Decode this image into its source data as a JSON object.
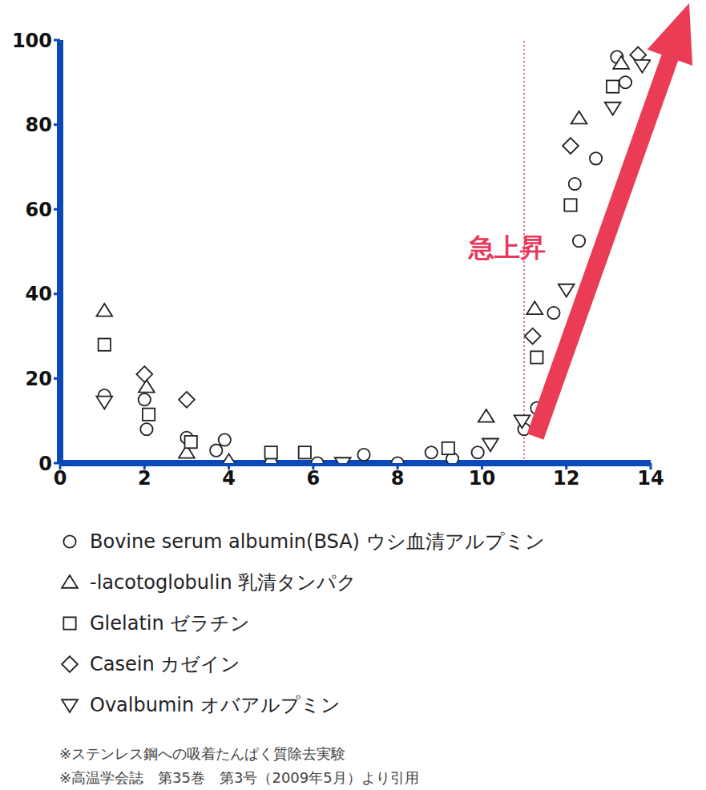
{
  "chart_data": {
    "type": "scatter",
    "xlim": [
      0,
      14
    ],
    "xticks": [
      0,
      2,
      4,
      6,
      8,
      10,
      12,
      14
    ],
    "ylim": [
      0,
      100
    ],
    "yticks": [
      0,
      20,
      40,
      60,
      80,
      100
    ],
    "series": [
      {
        "name": "Bovine serum albumin(BSA) ウシ血清アルプミン",
        "color": "#222222",
        "marker": "circle",
        "x": [
          1.05,
          2.0,
          2.05,
          3.0,
          3.9,
          3.7,
          5.0,
          6.1,
          7.2,
          8.0,
          8.8,
          9.3,
          9.9,
          11.0,
          11.3,
          11.7,
          12.3,
          12.2,
          12.7,
          13.2,
          13.4
        ],
        "values": [
          16,
          15,
          8,
          6,
          5.5,
          3,
          0,
          0,
          2,
          0,
          2.5,
          1,
          2.5,
          8,
          13,
          35.5,
          52.5,
          66,
          72,
          96,
          90
        ]
      },
      {
        "name": "-lacotoglobulin 乳清タンパク",
        "color": "#222222",
        "marker": "triangle",
        "x": [
          1.05,
          2.05,
          3.0,
          4.0,
          10.1,
          11.25,
          12.3,
          13.3
        ],
        "values": [
          36,
          18,
          2.5,
          0.5,
          11,
          36.5,
          81.5,
          94.5
        ]
      },
      {
        "name": "Glelatin ゼラチン",
        "color": "#222222",
        "marker": "square",
        "x": [
          1.05,
          2.1,
          3.1,
          5.0,
          5.8,
          9.2,
          11.3,
          12.1,
          13.1
        ],
        "values": [
          28,
          11.5,
          5,
          2.5,
          2.5,
          3.5,
          25,
          61,
          89
        ]
      },
      {
        "name": "Casein カゼイン",
        "color": "#222222",
        "marker": "diamond",
        "x": [
          2.0,
          3.0,
          11.2,
          12.1,
          13.7
        ],
        "values": [
          21,
          15,
          30,
          75,
          96.5
        ]
      },
      {
        "name": "Ovalbumin オバアルプミン",
        "color": "#222222",
        "marker": "triangle-down",
        "x": [
          1.05,
          6.7,
          10.2,
          10.95,
          12.0,
          13.1,
          13.8
        ],
        "values": [
          14.5,
          0,
          4.5,
          10,
          41,
          84,
          94
        ]
      }
    ],
    "annotations": [
      {
        "text": "急上昇",
        "x": 10.6,
        "y": 51,
        "color": "#e8385a"
      }
    ],
    "reference_lines": [
      {
        "x": 11,
        "color": "#e8385a",
        "line_style": "dotted"
      }
    ],
    "notes": [
      "※ステンレス鋼への吸着たんぱく質除去実験",
      "※高温学会誌　第35巻　第3号（2009年5月）より引用"
    ]
  }
}
